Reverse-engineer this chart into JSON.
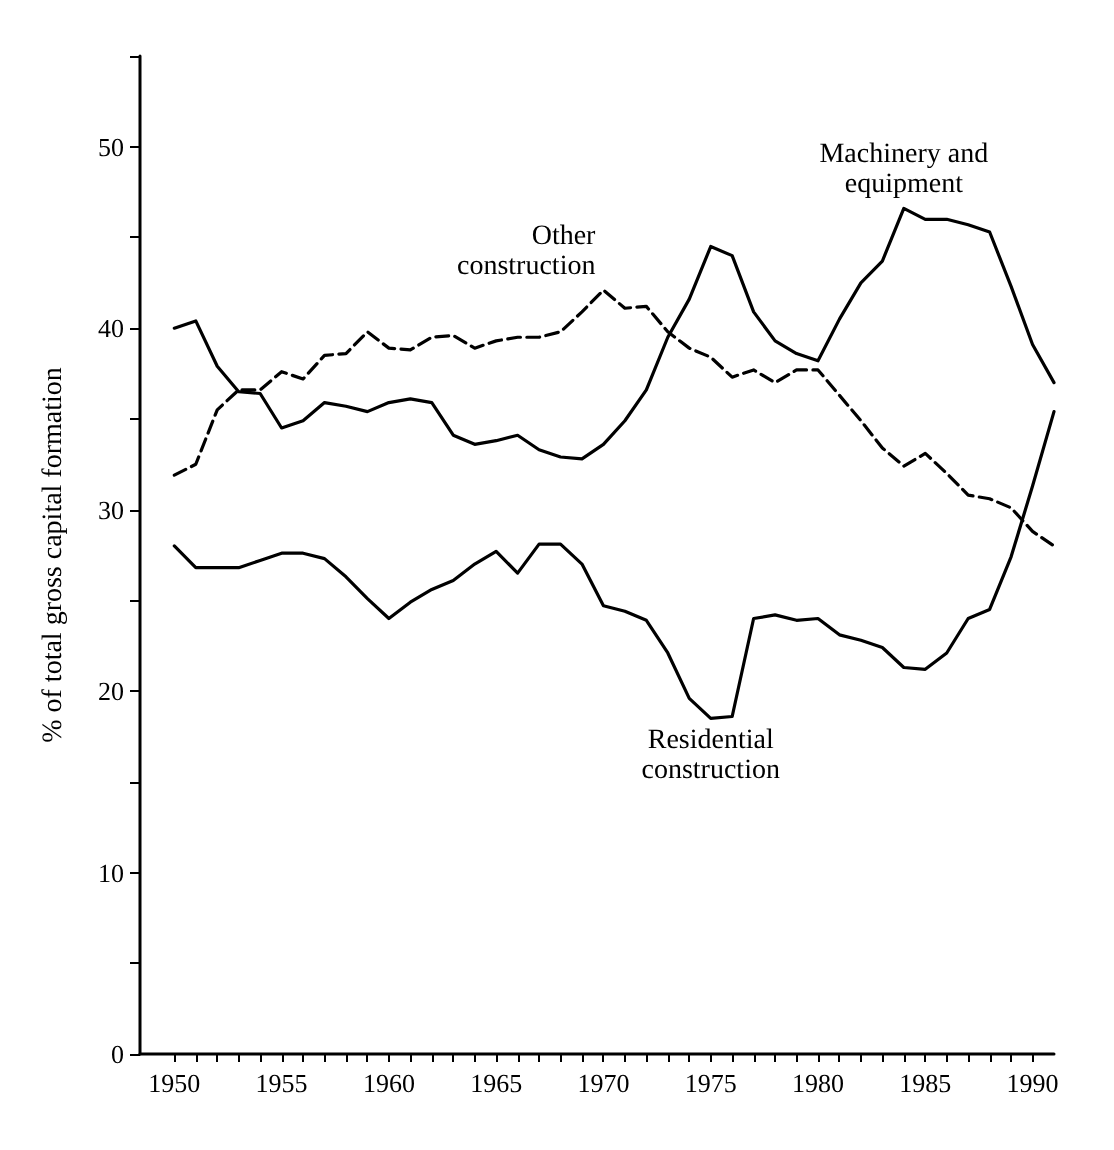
{
  "chart_data": {
    "type": "line",
    "ylabel": "% of total gross capital formation",
    "x": [
      1950,
      1951,
      1952,
      1953,
      1954,
      1955,
      1956,
      1957,
      1958,
      1959,
      1960,
      1961,
      1962,
      1963,
      1964,
      1965,
      1966,
      1967,
      1968,
      1969,
      1970,
      1971,
      1972,
      1973,
      1974,
      1975,
      1976,
      1977,
      1978,
      1979,
      1980,
      1981,
      1982,
      1983,
      1984,
      1985,
      1986,
      1987,
      1988,
      1989,
      1990,
      1991
    ],
    "series": [
      {
        "name": "Residential\nconstruction",
        "color": "#000000",
        "line_style": "solid",
        "values": [
          28.0,
          26.8,
          26.8,
          26.8,
          27.2,
          27.6,
          27.6,
          27.3,
          26.3,
          25.1,
          24.0,
          24.9,
          25.6,
          26.1,
          27.0,
          27.7,
          26.5,
          28.1,
          28.1,
          27.0,
          24.7,
          24.4,
          23.9,
          22.1,
          19.6,
          18.5,
          18.6,
          24.0,
          24.2,
          23.9,
          24.0,
          23.1,
          22.8,
          22.4,
          21.3,
          21.2,
          22.1,
          24.0,
          24.5,
          27.4,
          31.3,
          35.4
        ]
      },
      {
        "name": "Machinery and\nequipment",
        "color": "#000000",
        "line_style": "solid",
        "values": [
          40.0,
          40.4,
          37.9,
          36.5,
          36.4,
          34.5,
          34.9,
          35.9,
          35.7,
          35.4,
          35.9,
          36.1,
          35.9,
          34.1,
          33.6,
          33.8,
          34.1,
          33.3,
          32.9,
          32.8,
          33.6,
          34.9,
          36.6,
          39.5,
          41.6,
          44.5,
          44.0,
          40.9,
          39.3,
          38.6,
          38.2,
          40.5,
          42.5,
          43.7,
          46.6,
          46.0,
          46.0,
          45.7,
          45.3,
          42.3,
          39.1,
          37.0
        ]
      },
      {
        "name": "Other\nconstruction",
        "color": "#000000",
        "line_style": "dashed",
        "values": [
          31.9,
          32.5,
          35.5,
          36.6,
          36.6,
          37.6,
          37.2,
          38.5,
          38.6,
          39.8,
          38.9,
          38.8,
          39.5,
          39.6,
          38.9,
          39.3,
          39.5,
          39.5,
          39.8,
          40.9,
          42.1,
          41.1,
          41.2,
          39.8,
          38.9,
          38.4,
          37.3,
          37.7,
          37.0,
          37.7,
          37.7,
          36.3,
          34.9,
          33.4,
          32.4,
          33.1,
          32.0,
          30.8,
          30.6,
          30.1,
          28.8,
          28.0
        ]
      }
    ],
    "xlim": [
      1948.4,
      1991
    ],
    "xticks": [
      1950,
      {
        "value": 1951,
        "label": null
      },
      {
        "value": 1952,
        "label": null
      },
      {
        "value": 1953,
        "label": null
      },
      {
        "value": 1954,
        "label": null
      },
      1955,
      {
        "value": 1956,
        "label": null
      },
      {
        "value": 1957,
        "label": null
      },
      {
        "value": 1958,
        "label": null
      },
      {
        "value": 1959,
        "label": null
      },
      1960,
      {
        "value": 1961,
        "label": null
      },
      {
        "value": 1962,
        "label": null
      },
      {
        "value": 1963,
        "label": null
      },
      {
        "value": 1964,
        "label": null
      },
      1965,
      {
        "value": 1966,
        "label": null
      },
      {
        "value": 1967,
        "label": null
      },
      {
        "value": 1968,
        "label": null
      },
      {
        "value": 1969,
        "label": null
      },
      1970,
      {
        "value": 1971,
        "label": null
      },
      {
        "value": 1972,
        "label": null
      },
      {
        "value": 1973,
        "label": null
      },
      {
        "value": 1974,
        "label": null
      },
      1975,
      {
        "value": 1976,
        "label": null
      },
      {
        "value": 1977,
        "label": null
      },
      {
        "value": 1978,
        "label": null
      },
      {
        "value": 1979,
        "label": null
      },
      1980,
      {
        "value": 1981,
        "label": null
      },
      {
        "value": 1982,
        "label": null
      },
      {
        "value": 1983,
        "label": null
      },
      {
        "value": 1984,
        "label": null
      },
      1985,
      {
        "value": 1986,
        "label": null
      },
      {
        "value": 1987,
        "label": null
      },
      {
        "value": 1988,
        "label": null
      },
      {
        "value": 1989,
        "label": null
      },
      1990
    ],
    "ylim": [
      0,
      55
    ],
    "yticks": [
      0,
      {
        "value": 5,
        "label": null
      },
      10,
      {
        "value": 15,
        "label": null
      },
      20,
      {
        "value": 25,
        "label": null
      },
      30,
      {
        "value": 35,
        "label": null
      },
      40,
      {
        "value": 45,
        "label": null
      },
      50,
      {
        "value": 55,
        "label": null
      }
    ],
    "grid": false,
    "legend": false,
    "marker": "none"
  }
}
